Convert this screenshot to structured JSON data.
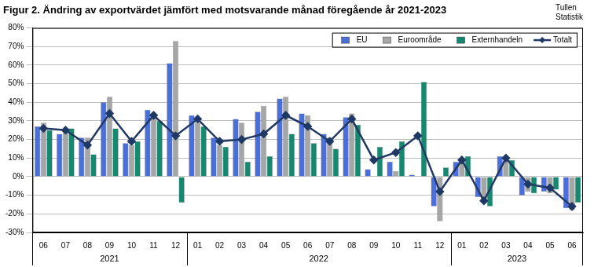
{
  "chart_data": {
    "type": "bar",
    "title": "Figur 2. Ändring av exportvärdet jämfört med motsvarande månad föregående år 2021-2023",
    "source": [
      "Tullen",
      "Statistik"
    ],
    "categories": [
      "06",
      "07",
      "08",
      "09",
      "10",
      "11",
      "12",
      "01",
      "02",
      "03",
      "04",
      "05",
      "06",
      "07",
      "08",
      "09",
      "10",
      "11",
      "12",
      "01",
      "02",
      "03",
      "04",
      "05",
      "06"
    ],
    "years": [
      "2021",
      "2021",
      "2021",
      "2021",
      "2021",
      "2021",
      "2021",
      "2022",
      "2022",
      "2022",
      "2022",
      "2022",
      "2022",
      "2022",
      "2022",
      "2022",
      "2022",
      "2022",
      "2022",
      "2023",
      "2023",
      "2023",
      "2023",
      "2023",
      "2023"
    ],
    "series": [
      {
        "name": "EU",
        "color": "#4a6fdc",
        "values": [
          27,
          23,
          21,
          40,
          18,
          36,
          61,
          33,
          21,
          31,
          35,
          42,
          34,
          23,
          32,
          4,
          8,
          1,
          -16,
          8,
          -11,
          11,
          -10,
          -8,
          -17
        ]
      },
      {
        "name": "Euroområde",
        "color": "#a6a6a6",
        "values": [
          29,
          24,
          21,
          43,
          17,
          34,
          73,
          29,
          17,
          29,
          38,
          43,
          33,
          21,
          34,
          0,
          3,
          0,
          -24,
          10,
          -13,
          10,
          -8,
          -9,
          -18
        ]
      },
      {
        "name": "Externhandeln",
        "color": "#15896f",
        "values": [
          25,
          26,
          12,
          26,
          19,
          30,
          -14,
          27,
          16,
          8,
          11,
          23,
          18,
          15,
          28,
          16,
          19,
          51,
          5,
          11,
          -16,
          9,
          -9,
          -7,
          -14
        ]
      },
      {
        "name": "Totalt",
        "type": "line",
        "color": "#1f3864",
        "marker": "diamond",
        "line_style": "solid",
        "values": [
          26,
          25,
          17,
          34,
          19,
          33,
          22,
          31,
          19,
          20,
          23,
          33,
          27,
          19,
          31,
          9,
          13,
          22,
          -8,
          9,
          -13,
          10,
          -4,
          -6,
          -16
        ]
      }
    ],
    "ylim": [
      -30,
      80
    ],
    "yticks": [
      {
        "value": -30,
        "label": "-30%"
      },
      {
        "value": -20,
        "label": "-20%"
      },
      {
        "value": -10,
        "label": "-10%"
      },
      {
        "value": 0,
        "label": "0%"
      },
      {
        "value": 10,
        "label": "10%"
      },
      {
        "value": 20,
        "label": "20%"
      },
      {
        "value": 30,
        "label": "30%"
      },
      {
        "value": 40,
        "label": "40%"
      },
      {
        "value": 50,
        "label": "50%"
      },
      {
        "value": 60,
        "label": "60%"
      },
      {
        "value": 70,
        "label": "70%"
      },
      {
        "value": 80,
        "label": "80%"
      }
    ],
    "grid": true,
    "legend": "upper right"
  }
}
